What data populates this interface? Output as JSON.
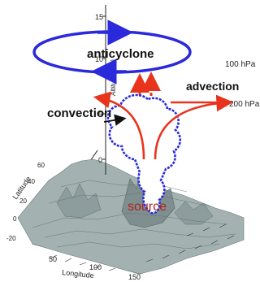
{
  "labels": {
    "anticyclone": "anticyclone",
    "advection": "advection",
    "convection": "convection",
    "source": "source",
    "level_100": "100 hPa",
    "level_200": "200 hPa"
  },
  "axes": {
    "altitude_label": "Altitude (km)",
    "altitude_ticks": [
      "15",
      "10",
      "5",
      "0"
    ],
    "latitude_label": "Latitude",
    "latitude_ticks": [
      "60",
      "40",
      "20",
      "0",
      "-20"
    ],
    "longitude_label": "Longitude",
    "longitude_ticks": [
      "50",
      "100",
      "150"
    ]
  },
  "colors": {
    "blue_outline": "#2a2adc",
    "red_arrow": "#e8341c",
    "source_text": "#b02020",
    "terrain": "#9aa8a8",
    "terrain_dark": "#5e6e6e"
  }
}
